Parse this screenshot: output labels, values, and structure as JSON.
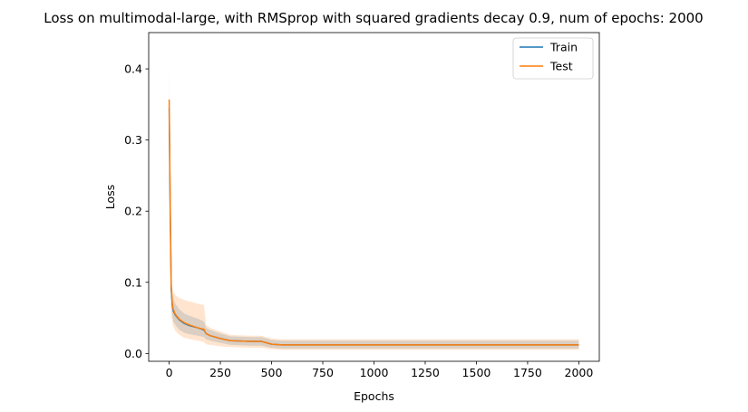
{
  "chart_data": {
    "type": "line",
    "title": "Loss on multimodal-large, with RMSprop with squared gradients decay 0.9, num of epochs: 2000",
    "xlabel": "Epochs",
    "ylabel": "Loss",
    "xlim": [
      -100,
      2100
    ],
    "ylim": [
      -0.011,
      0.451
    ],
    "xticks": [
      0,
      250,
      500,
      750,
      1000,
      1250,
      1500,
      1750,
      2000
    ],
    "yticks": [
      0.0,
      0.1,
      0.2,
      0.3,
      0.4
    ],
    "ytick_labels": [
      "0.0",
      "0.1",
      "0.2",
      "0.3",
      "0.4"
    ],
    "legend_position": "top-right",
    "grid": false,
    "series": [
      {
        "name": "Train",
        "color": "#1f77b4",
        "x": [
          0,
          5,
          10,
          15,
          20,
          30,
          50,
          75,
          100,
          140,
          170,
          180,
          200,
          250,
          300,
          400,
          450,
          500,
          550,
          750,
          1000,
          1500,
          2000
        ],
        "y": [
          0.345,
          0.2,
          0.09,
          0.068,
          0.06,
          0.054,
          0.047,
          0.042,
          0.039,
          0.036,
          0.033,
          0.028,
          0.025,
          0.021,
          0.018,
          0.017,
          0.017,
          0.013,
          0.012,
          0.012,
          0.012,
          0.012,
          0.012
        ],
        "lower": [
          0.34,
          0.18,
          0.07,
          0.052,
          0.045,
          0.04,
          0.033,
          0.029,
          0.027,
          0.025,
          0.023,
          0.02,
          0.018,
          0.015,
          0.012,
          0.011,
          0.011,
          0.008,
          0.007,
          0.007,
          0.007,
          0.007,
          0.007
        ],
        "upper": [
          0.35,
          0.22,
          0.11,
          0.085,
          0.077,
          0.07,
          0.062,
          0.056,
          0.053,
          0.049,
          0.045,
          0.036,
          0.033,
          0.028,
          0.024,
          0.023,
          0.023,
          0.019,
          0.018,
          0.018,
          0.018,
          0.018,
          0.018
        ]
      },
      {
        "name": "Test",
        "color": "#ff7f0e",
        "x": [
          0,
          5,
          10,
          15,
          20,
          30,
          50,
          75,
          100,
          140,
          170,
          180,
          200,
          250,
          300,
          400,
          450,
          500,
          550,
          750,
          1000,
          1500,
          2000
        ],
        "y": [
          0.357,
          0.21,
          0.095,
          0.07,
          0.062,
          0.055,
          0.048,
          0.043,
          0.04,
          0.036,
          0.034,
          0.028,
          0.025,
          0.021,
          0.018,
          0.017,
          0.017,
          0.013,
          0.012,
          0.012,
          0.012,
          0.012,
          0.012
        ],
        "lower": [
          0.3,
          0.17,
          0.06,
          0.045,
          0.038,
          0.032,
          0.026,
          0.022,
          0.02,
          0.018,
          0.016,
          0.013,
          0.012,
          0.01,
          0.009,
          0.008,
          0.008,
          0.006,
          0.005,
          0.005,
          0.005,
          0.005,
          0.005
        ],
        "upper": [
          0.405,
          0.25,
          0.12,
          0.092,
          0.086,
          0.082,
          0.078,
          0.075,
          0.073,
          0.07,
          0.068,
          0.04,
          0.036,
          0.031,
          0.026,
          0.025,
          0.025,
          0.021,
          0.02,
          0.02,
          0.02,
          0.02,
          0.02
        ]
      }
    ]
  }
}
